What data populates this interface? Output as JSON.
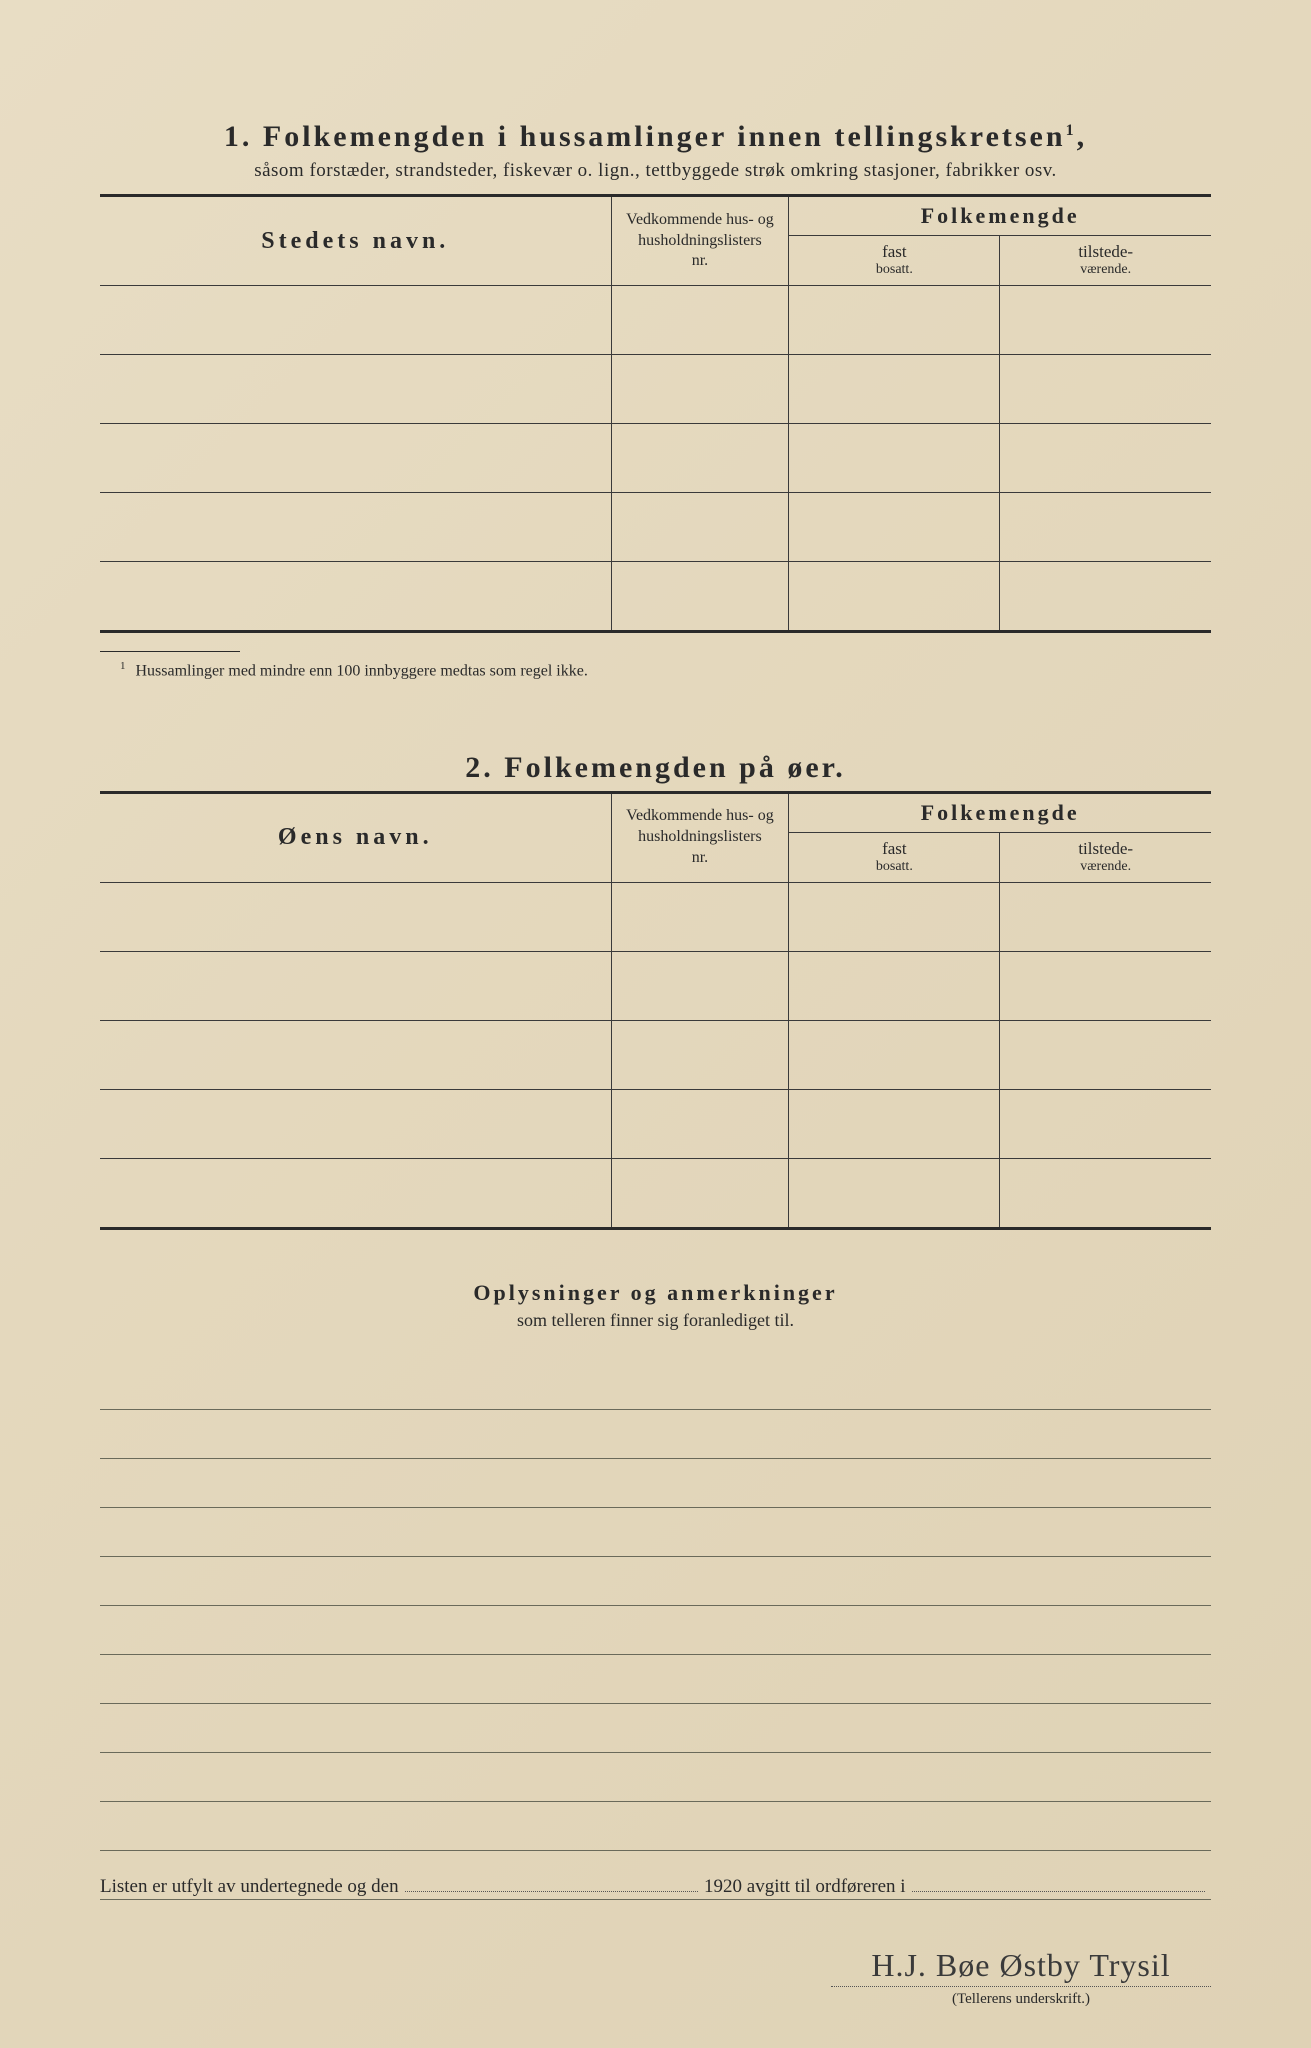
{
  "section1": {
    "number": "1.",
    "title": "Folkemengden i hussamlinger innen tellingskretsen",
    "title_sup": "1",
    "subtitle": "såsom forstæder, strandsteder, fiskevær o. lign., tettbyggede strøk omkring stasjoner, fabrikker osv.",
    "columns": {
      "name": "Stedets navn.",
      "ref_line1": "Vedkommende hus- og",
      "ref_line2": "husholdningslisters",
      "ref_line3": "nr.",
      "pop_header": "Folkemengde",
      "fast": "fast",
      "fast_sub": "bosatt.",
      "tilstede": "tilstede-",
      "tilstede_sub": "værende."
    },
    "rows": [
      "",
      "",
      "",
      "",
      ""
    ],
    "footnote_marker": "1",
    "footnote": "Hussamlinger med mindre enn 100 innbyggere medtas som regel ikke."
  },
  "section2": {
    "number": "2.",
    "title": "Folkemengden på øer.",
    "columns": {
      "name": "Øens navn.",
      "ref_line1": "Vedkommende hus- og",
      "ref_line2": "husholdningslisters",
      "ref_line3": "nr.",
      "pop_header": "Folkemengde",
      "fast": "fast",
      "fast_sub": "bosatt.",
      "tilstede": "tilstede-",
      "tilstede_sub": "værende."
    },
    "rows": [
      "",
      "",
      "",
      "",
      ""
    ]
  },
  "notes": {
    "title": "Oplysninger og anmerkninger",
    "subtitle": "som telleren finner sig foranlediget til.",
    "line_count": 11
  },
  "bottom": {
    "text_before": "Listen er utfylt av undertegnede og den",
    "year": "1920",
    "text_after": "avgitt til ordføreren i"
  },
  "signature": {
    "script": "H.J. Bøe  Østby Trysil",
    "label": "(Tellerens underskrift.)"
  },
  "styling": {
    "page_bg": "#e4d8bd",
    "text_color": "#2a2a2a",
    "rule_color": "#2a2a2a",
    "line_color": "#6a6a5a",
    "title_fontsize": 30,
    "subtitle_fontsize": 19,
    "body_fontsize": 18,
    "footnote_fontsize": 16
  }
}
